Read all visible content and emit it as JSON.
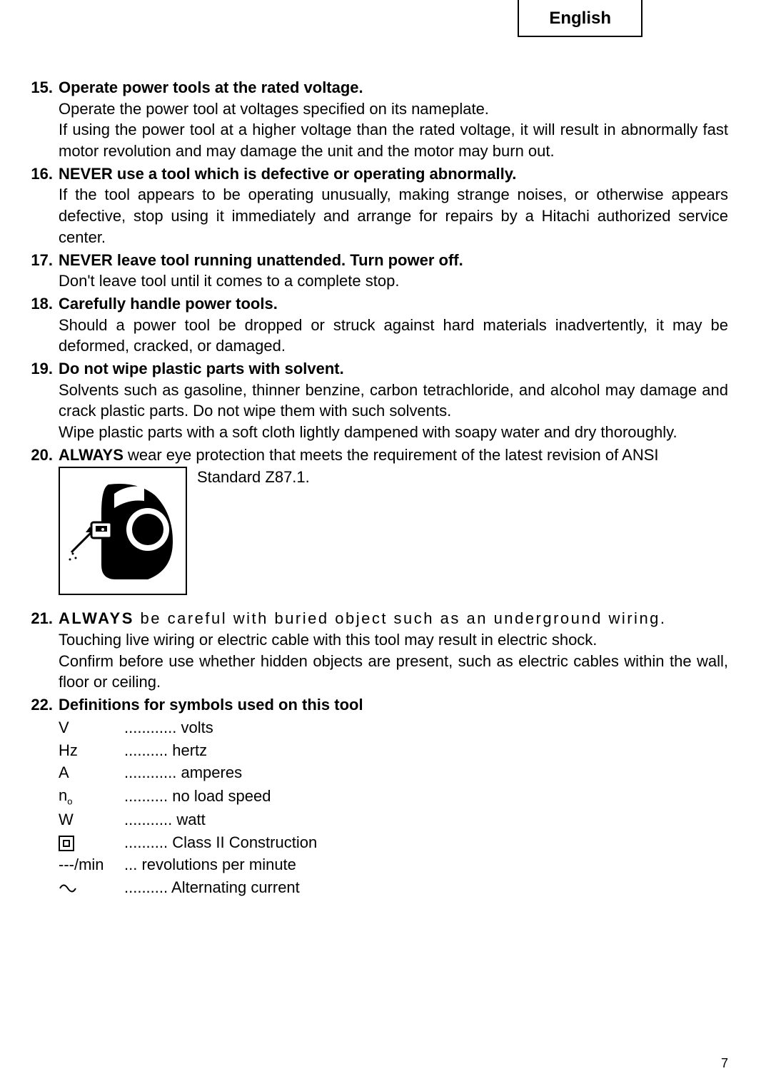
{
  "language_tab": "English",
  "page_number": "7",
  "item15": {
    "num": "15.",
    "title": "Operate power tools at the rated voltage.",
    "p1": "Operate the power tool at voltages specified on its nameplate.",
    "p2": "If using the power tool at a higher voltage than the rated voltage, it will result in abnormally fast motor revolution and may damage the unit and the motor may burn out."
  },
  "item16": {
    "num": "16.",
    "title": "NEVER use a tool which is defective or operating abnormally.",
    "p1": "If the tool appears to be operating unusually, making strange noises, or otherwise appears defective, stop using it immediately and arrange for repairs by a Hitachi authorized service center."
  },
  "item17": {
    "num": "17.",
    "title": "NEVER leave tool running unattended. Turn power off.",
    "p1": "Don't leave tool until it comes to a complete stop."
  },
  "item18": {
    "num": "18.",
    "title": "Carefully handle power tools.",
    "p1": "Should a power tool be dropped or struck against hard materials inadvertently, it may be deformed, cracked, or damaged."
  },
  "item19": {
    "num": "19.",
    "title": "Do not wipe plastic parts with solvent.",
    "p1": "Solvents such as gasoline, thinner benzine, carbon tetrachloride, and alcohol may damage and crack plastic parts. Do not wipe them with such solvents.",
    "p2": "Wipe plastic parts with a soft cloth lightly dampened with soapy water and dry thoroughly."
  },
  "item20": {
    "num": "20.",
    "lead": "ALWAYS",
    "rest": " wear eye protection that meets the requirement of the latest revision of ANSI",
    "cont": "Standard Z87.1."
  },
  "item21": {
    "num": "21.",
    "lead": "ALWAYS",
    "rest": " be careful with buried object such as an underground wiring.",
    "p1": "Touching live wiring or electric cable with this tool may result in electric shock.",
    "p2": "Confirm before use whether hidden objects are present, such as electric cables within the wall, floor or ceiling."
  },
  "item22": {
    "num": "22.",
    "title": "Definitions for symbols used on this tool",
    "rows": [
      {
        "sym": "V",
        "dots": "............",
        "def": "volts"
      },
      {
        "sym": "Hz",
        "dots": "..........",
        "def": "hertz"
      },
      {
        "sym": "A",
        "dots": "............",
        "def": "amperes"
      },
      {
        "sym": "NO",
        "dots": "..........",
        "def": "no load speed"
      },
      {
        "sym": "W",
        "dots": "...........",
        "def": "watt"
      },
      {
        "sym": "SQ",
        "dots": "..........",
        "def": "Class II Construction"
      },
      {
        "sym": "---/min",
        "dots": "...",
        "def": "revolutions per minute"
      },
      {
        "sym": "AC",
        "dots": "..........",
        "def": "Alternating current"
      }
    ]
  }
}
